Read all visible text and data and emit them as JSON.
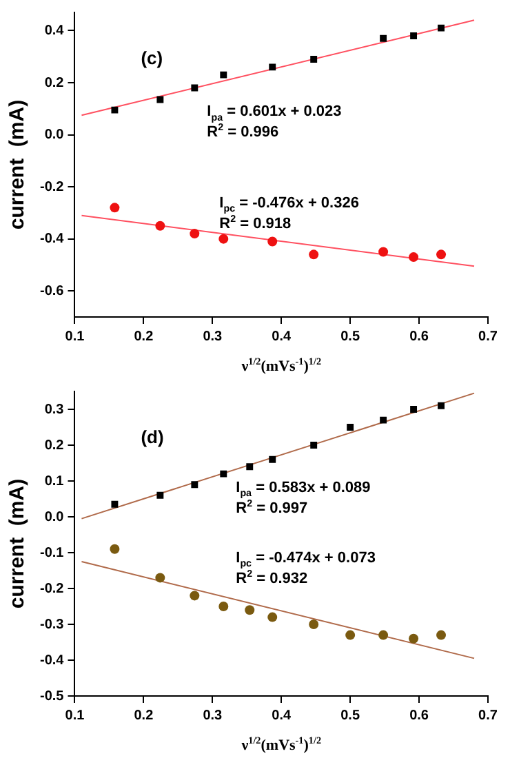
{
  "chart_data": [
    {
      "type": "scatter",
      "title": "(c)",
      "xlabel": "ν$^{1/2}$(mVs$^{-1}$)$^{1/2}$",
      "ylabel": "current  (mA)",
      "xlim": [
        0.1,
        0.7
      ],
      "xticks": [
        0.1,
        0.2,
        0.3,
        0.4,
        0.5,
        0.6,
        0.7
      ],
      "ylim": [
        -0.7,
        0.47
      ],
      "yticks": [
        -0.6,
        -0.4,
        -0.2,
        {
          "value": 0,
          "label": "0.0"
        },
        0.2,
        0.4
      ],
      "grid": false,
      "legend": false,
      "series": [
        {
          "type": "scatter",
          "marker": "square",
          "color": "#000000",
          "x": [
            0.158,
            0.224,
            0.274,
            0.316,
            0.387,
            0.447,
            0.548,
            0.592,
            0.632
          ],
          "values": [
            0.095,
            0.135,
            0.18,
            0.23,
            0.26,
            0.29,
            0.37,
            0.38,
            0.41
          ]
        },
        {
          "type": "scatter",
          "marker": "circle",
          "color": "#ee1111",
          "x": [
            0.158,
            0.224,
            0.274,
            0.316,
            0.387,
            0.447,
            0.548,
            0.592,
            0.632
          ],
          "values": [
            -0.28,
            -0.35,
            -0.38,
            -0.4,
            -0.41,
            -0.46,
            -0.45,
            -0.47,
            -0.46
          ]
        },
        {
          "type": "line",
          "marker": "none",
          "color": "#ff5060",
          "x": [
            0.11,
            0.68
          ],
          "values": [
            0.075,
            0.44
          ]
        },
        {
          "type": "line",
          "marker": "none",
          "color": "#ff5060",
          "x": [
            0.11,
            0.68
          ],
          "values": [
            -0.31,
            -0.505
          ]
        }
      ],
      "annotations": [
        "I$_{pa}$ = 0.601x + 0.023",
        "R$^{2}$ = 0.996",
        "I$_{pc}$ = -0.476x + 0.326",
        "R$^{2}$ = 0.918"
      ]
    },
    {
      "type": "scatter",
      "title": "(d)",
      "xlabel": "ν$^{1/2}$(mVs$^{-1}$)$^{1/2}$",
      "ylabel": "current  (mA)",
      "xlim": [
        0.1,
        0.7
      ],
      "xticks": [
        0.1,
        0.2,
        0.3,
        0.4,
        0.5,
        0.6,
        0.7
      ],
      "ylim": [
        -0.5,
        0.35
      ],
      "yticks": [
        -0.5,
        -0.4,
        -0.3,
        -0.2,
        -0.1,
        {
          "value": 0,
          "label": "0.0"
        },
        0.1,
        0.2,
        0.3
      ],
      "grid": false,
      "legend": false,
      "series": [
        {
          "type": "scatter",
          "marker": "square",
          "color": "#000000",
          "x": [
            0.158,
            0.224,
            0.274,
            0.316,
            0.354,
            0.387,
            0.447,
            0.5,
            0.548,
            0.592,
            0.632
          ],
          "values": [
            0.035,
            0.06,
            0.09,
            0.12,
            0.14,
            0.16,
            0.2,
            0.25,
            0.27,
            0.3,
            0.31
          ]
        },
        {
          "type": "scatter",
          "marker": "circle",
          "color": "#7a5a10",
          "x": [
            0.158,
            0.224,
            0.274,
            0.316,
            0.354,
            0.387,
            0.447,
            0.5,
            0.548,
            0.592,
            0.632
          ],
          "values": [
            -0.09,
            -0.17,
            -0.22,
            -0.25,
            -0.26,
            -0.28,
            -0.3,
            -0.33,
            -0.33,
            -0.34,
            -0.33
          ]
        },
        {
          "type": "line",
          "marker": "none",
          "color": "#b06a4a",
          "x": [
            0.11,
            0.68
          ],
          "values": [
            -0.005,
            0.345
          ]
        },
        {
          "type": "line",
          "marker": "none",
          "color": "#b06a4a",
          "x": [
            0.11,
            0.68
          ],
          "values": [
            -0.125,
            -0.395
          ]
        }
      ],
      "annotations": [
        "I$_{pa}$ = 0.583x + 0.089",
        "R$^{2}$ = 0.997",
        "I$_{pc}$ = -0.474x + 0.073",
        "R$^{2}$ = 0.932"
      ]
    }
  ]
}
